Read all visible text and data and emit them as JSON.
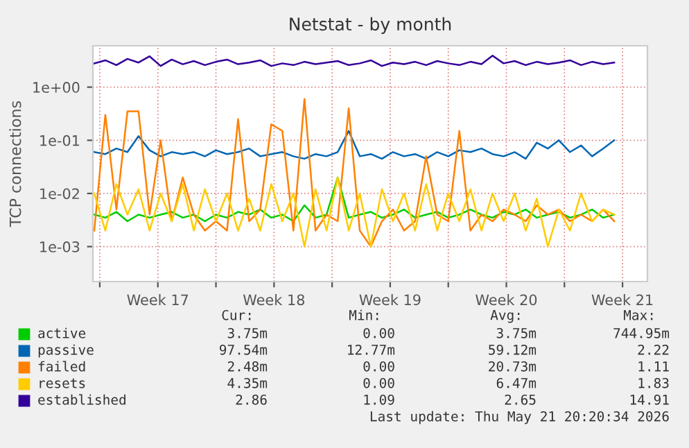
{
  "chart_data": {
    "type": "line",
    "title": "Netstat - by month",
    "ylabel": "TCP connections",
    "x": [
      "2026-04-19T16:00",
      "2026-04-20T08:00",
      "2026-04-21T00:00",
      "2026-04-21T16:00",
      "2026-04-22T08:00",
      "2026-04-23T00:00",
      "2026-04-23T16:00",
      "2026-04-24T08:00",
      "2026-04-25T00:00",
      "2026-04-25T16:00",
      "2026-04-26T08:00",
      "2026-04-27T00:00",
      "2026-04-27T16:00",
      "2026-04-28T08:00",
      "2026-04-29T00:00",
      "2026-04-29T16:00",
      "2026-04-30T08:00",
      "2026-05-01T00:00",
      "2026-05-01T16:00",
      "2026-05-02T08:00",
      "2026-05-03T00:00",
      "2026-05-03T16:00",
      "2026-05-04T08:00",
      "2026-05-05T00:00",
      "2026-05-05T16:00",
      "2026-05-06T08:00",
      "2026-05-07T00:00",
      "2026-05-07T16:00",
      "2026-05-08T08:00",
      "2026-05-09T00:00",
      "2026-05-09T16:00",
      "2026-05-10T08:00",
      "2026-05-11T00:00",
      "2026-05-11T16:00",
      "2026-05-12T08:00",
      "2026-05-13T00:00",
      "2026-05-13T16:00",
      "2026-05-14T08:00",
      "2026-05-15T00:00",
      "2026-05-15T16:00",
      "2026-05-16T08:00",
      "2026-05-17T00:00",
      "2026-05-17T16:00",
      "2026-05-18T08:00",
      "2026-05-19T00:00",
      "2026-05-19T16:00",
      "2026-05-20T08:00",
      "2026-05-21T00:00"
    ],
    "series": [
      {
        "name": "active",
        "color": "#00cc00",
        "values": [
          0.004,
          0.0035,
          0.0045,
          0.003,
          0.004,
          0.0035,
          0.004,
          0.0045,
          0.0035,
          0.004,
          0.003,
          0.004,
          0.0035,
          0.0045,
          0.004,
          0.005,
          0.0035,
          0.004,
          0.003,
          0.006,
          0.0035,
          0.004,
          0.02,
          0.0035,
          0.004,
          0.0045,
          0.0035,
          0.004,
          0.005,
          0.0035,
          0.004,
          0.0045,
          0.0035,
          0.004,
          0.005,
          0.004,
          0.0035,
          0.0045,
          0.004,
          0.005,
          0.0035,
          0.004,
          0.0045,
          0.0035,
          0.004,
          0.005,
          0.0035,
          0.004
        ]
      },
      {
        "name": "passive",
        "color": "#0066b3",
        "values": [
          0.06,
          0.055,
          0.07,
          0.06,
          0.12,
          0.065,
          0.05,
          0.06,
          0.055,
          0.06,
          0.05,
          0.065,
          0.055,
          0.06,
          0.07,
          0.05,
          0.055,
          0.06,
          0.05,
          0.045,
          0.055,
          0.05,
          0.06,
          0.15,
          0.05,
          0.055,
          0.045,
          0.06,
          0.05,
          0.055,
          0.045,
          0.06,
          0.05,
          0.065,
          0.06,
          0.07,
          0.055,
          0.05,
          0.06,
          0.045,
          0.09,
          0.07,
          0.1,
          0.06,
          0.08,
          0.05,
          0.07,
          0.1
        ]
      },
      {
        "name": "failed",
        "color": "#ff8000",
        "values": [
          0.002,
          0.3,
          0.005,
          0.35,
          0.35,
          0.004,
          0.1,
          0.003,
          0.02,
          0.004,
          0.002,
          0.003,
          0.002,
          0.25,
          0.003,
          0.005,
          0.2,
          0.15,
          0.002,
          0.6,
          0.002,
          0.004,
          0.003,
          0.4,
          0.002,
          0.001,
          0.003,
          0.005,
          0.002,
          0.003,
          0.05,
          0.004,
          0.003,
          0.15,
          0.002,
          0.004,
          0.003,
          0.005,
          0.004,
          0.003,
          0.006,
          0.004,
          0.005,
          0.003,
          0.004,
          0.003,
          0.005,
          0.003
        ]
      },
      {
        "name": "resets",
        "color": "#ffcc00",
        "values": [
          0.01,
          0.002,
          0.015,
          0.004,
          0.012,
          0.002,
          0.01,
          0.003,
          0.015,
          0.002,
          0.012,
          0.003,
          0.01,
          0.002,
          0.008,
          0.002,
          0.015,
          0.003,
          0.01,
          0.001,
          0.012,
          0.002,
          0.02,
          0.002,
          0.01,
          0.001,
          0.012,
          0.003,
          0.01,
          0.002,
          0.015,
          0.002,
          0.01,
          0.003,
          0.012,
          0.002,
          0.01,
          0.003,
          0.01,
          0.002,
          0.008,
          0.001,
          0.005,
          0.002,
          0.01,
          0.003,
          0.005,
          0.004
        ]
      },
      {
        "name": "established",
        "color": "#330099",
        "values": [
          2.8,
          3.2,
          2.6,
          3.4,
          2.9,
          3.8,
          2.5,
          3.3,
          2.7,
          3.1,
          2.6,
          3.0,
          3.3,
          2.7,
          2.9,
          3.2,
          2.5,
          2.8,
          2.6,
          3.0,
          2.7,
          2.9,
          3.1,
          2.6,
          2.8,
          3.2,
          2.5,
          2.9,
          2.7,
          3.0,
          2.6,
          3.1,
          2.8,
          2.6,
          3.0,
          2.7,
          3.9,
          2.8,
          3.1,
          2.6,
          3.0,
          2.7,
          2.9,
          3.2,
          2.6,
          3.0,
          2.7,
          2.9
        ]
      }
    ],
    "log": "y",
    "ylim": [
      0.00022,
      6
    ],
    "yticks": [
      {
        "value": 0.001,
        "label": "1e-03"
      },
      {
        "value": 0.01,
        "label": "1e-02"
      },
      {
        "value": 0.1,
        "label": "1e-01"
      },
      {
        "value": 1,
        "label": "1e+00"
      }
    ],
    "xlim": [
      "2026-04-19T14:00",
      "2026-05-23T00:00"
    ],
    "xticks": [
      {
        "value": "2026-04-20",
        "label": null
      },
      {
        "value": "2026-04-23T12:00",
        "label": "Week 17"
      },
      {
        "value": "2026-04-27",
        "label": null
      },
      {
        "value": "2026-04-30T12:00",
        "label": "Week 18"
      },
      {
        "value": "2026-05-04",
        "label": null
      },
      {
        "value": "2026-05-07T12:00",
        "label": "Week 19"
      },
      {
        "value": "2026-05-11",
        "label": null
      },
      {
        "value": "2026-05-14T12:00",
        "label": "Week 20"
      },
      {
        "value": "2026-05-18",
        "label": null
      },
      {
        "value": "2026-05-21T12:00",
        "label": "Week 21"
      }
    ],
    "grid": true,
    "legend": "bottom",
    "marker": "none",
    "line_style": "solid",
    "annotations": [
      "Cur:",
      "Min:",
      "Avg:",
      "Max:",
      "3.75m",
      "0.00",
      "3.75m",
      "744.95m",
      "97.54m",
      "12.77m",
      "59.12m",
      "2.22",
      "2.48m",
      "0.00",
      "20.73m",
      "1.11",
      "4.35m",
      "0.00",
      "6.47m",
      "1.83",
      "2.86",
      "1.09",
      "2.65",
      "14.91",
      "Last update: Thu May 21 20:20:34 2026"
    ]
  }
}
